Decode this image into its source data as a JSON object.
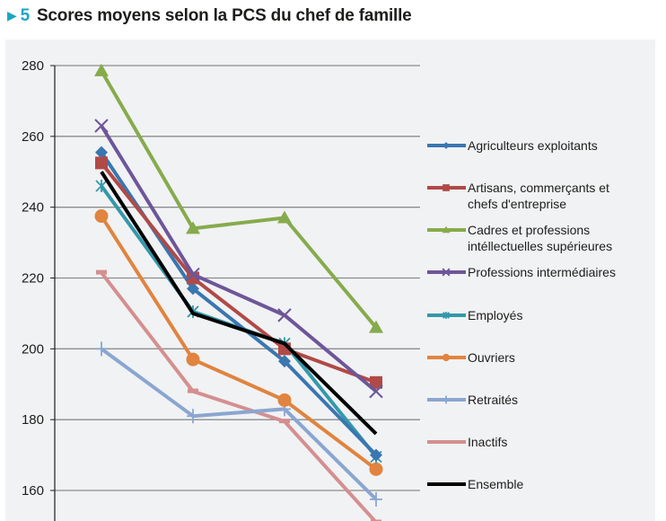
{
  "header": {
    "arrow_icon": "triangle-right-icon",
    "number": "5",
    "title": "Scores moyens selon la PCS du chef de famille"
  },
  "chart_data": {
    "type": "line",
    "title": "Scores moyens selon la PCS du chef de famille",
    "xlabel": "",
    "ylabel": "",
    "x": [
      1,
      2,
      3,
      4
    ],
    "ylim": [
      150,
      280
    ],
    "yticks": [
      160,
      180,
      200,
      220,
      240,
      260,
      280
    ],
    "grid": true,
    "legend_position": "right",
    "series": [
      {
        "name": "Agriculteurs exploitants",
        "legend_lines": [
          "Agriculteurs exploitants"
        ],
        "color": "#3a76b0",
        "marker": "diamond",
        "values": [
          255.5,
          217,
          196.5,
          170
        ]
      },
      {
        "name": "Artisans, commerçants et chefs d'entreprise",
        "legend_lines": [
          "Artisans, commerçants et",
          "chefs d'entreprise"
        ],
        "color": "#b04a46",
        "marker": "square",
        "values": [
          252.5,
          220,
          200,
          190.5
        ]
      },
      {
        "name": "Cadres et professions intéllectuelles supérieures",
        "legend_lines": [
          "Cadres et professions",
          "intéllectuelles supérieures"
        ],
        "color": "#86ab4c",
        "marker": "triangle",
        "values": [
          278.5,
          234,
          237,
          206
        ]
      },
      {
        "name": "Professions intermédiaires",
        "legend_lines": [
          "Professions intermédiaires"
        ],
        "color": "#6d5699",
        "marker": "x",
        "values": [
          263,
          221,
          209.5,
          188
        ]
      },
      {
        "name": "Employés",
        "legend_lines": [
          "Employés"
        ],
        "color": "#3498ab",
        "marker": "asterisk",
        "values": [
          246,
          210.5,
          201.5,
          169.5
        ]
      },
      {
        "name": "Ouvriers",
        "legend_lines": [
          "Ouvriers"
        ],
        "color": "#e0843f",
        "marker": "circle",
        "values": [
          237.5,
          197,
          185.5,
          166
        ]
      },
      {
        "name": "Retraités",
        "legend_lines": [
          "Retraités"
        ],
        "color": "#8aa6d0",
        "marker": "plus",
        "values": [
          200,
          181,
          183,
          157.5
        ]
      },
      {
        "name": "Inactifs",
        "legend_lines": [
          "Inactifs"
        ],
        "color": "#d48f8f",
        "marker": "dash",
        "values": [
          221.5,
          188,
          179.5,
          151
        ]
      },
      {
        "name": "Ensemble",
        "legend_lines": [
          "Ensemble"
        ],
        "color": "#000000",
        "marker": "none",
        "values": [
          250,
          210,
          201.5,
          176
        ]
      }
    ]
  }
}
